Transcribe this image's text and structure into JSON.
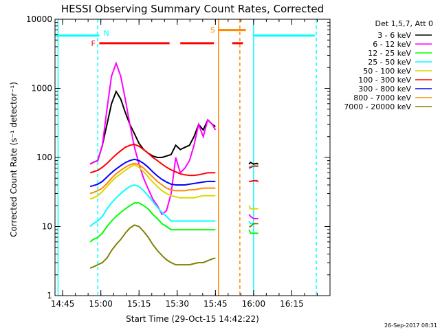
{
  "chart_data": {
    "type": "line",
    "title": "HESSI Observing Summary Count Rates, Corrected",
    "xlabel": "Start Time (29-Oct-15 14:42:22)",
    "ylabel": "Corrected Count Rate (s⁻¹ detector⁻¹)",
    "timestamp": "26-Sep-2017 08:31",
    "y_scale": "log",
    "ylim": [
      1,
      10000
    ],
    "y_ticks": [
      1,
      10,
      100,
      1000,
      10000
    ],
    "y_tick_labels": [
      "1",
      "10",
      "100",
      "1000",
      "10000"
    ],
    "xlim_min": [
      14.7,
      16.5
    ],
    "x_tick_labels": [
      "14:45",
      "15:00",
      "15:15",
      "15:30",
      "15:45",
      "16:00",
      "16:15"
    ],
    "legend_header": "Det 1,5,7, Att 0",
    "legend_position": "right",
    "grid": false,
    "series": [
      {
        "name": "3 - 6 keV",
        "color": "#000000",
        "x": [
          14.93,
          14.95,
          14.98,
          15.01,
          15.04,
          15.07,
          15.1,
          15.13,
          15.16,
          15.19,
          15.22,
          15.25,
          15.28,
          15.31,
          15.34,
          15.37,
          15.4,
          15.43,
          15.46,
          15.49,
          15.52,
          15.55,
          15.58,
          15.61,
          15.64,
          15.67,
          15.7,
          15.73,
          15.75
        ],
        "y": [
          80,
          85,
          90,
          150,
          300,
          600,
          900,
          700,
          450,
          300,
          220,
          160,
          130,
          115,
          105,
          100,
          100,
          105,
          110,
          150,
          130,
          140,
          150,
          200,
          300,
          250,
          350,
          300,
          280
        ]
      },
      {
        "name": "6 - 12 keV",
        "color": "#ff00ff",
        "x": [
          14.93,
          14.95,
          14.98,
          15.01,
          15.04,
          15.07,
          15.1,
          15.13,
          15.16,
          15.19,
          15.22,
          15.25,
          15.28,
          15.31,
          15.34,
          15.37,
          15.4,
          15.43,
          15.46,
          15.49,
          15.52,
          15.55,
          15.58,
          15.61,
          15.64,
          15.67,
          15.7,
          15.73,
          15.75
        ],
        "y": [
          80,
          85,
          90,
          150,
          500,
          1500,
          2300,
          1500,
          700,
          300,
          140,
          80,
          50,
          35,
          25,
          20,
          15,
          17,
          30,
          100,
          60,
          70,
          90,
          150,
          300,
          200,
          350,
          300,
          250
        ]
      },
      {
        "name": "12 - 25 keV",
        "color": "#00ff00",
        "x": [
          14.93,
          14.95,
          14.98,
          15.01,
          15.04,
          15.07,
          15.1,
          15.13,
          15.16,
          15.19,
          15.22,
          15.25,
          15.28,
          15.31,
          15.34,
          15.37,
          15.4,
          15.43,
          15.46,
          15.49,
          15.52,
          15.55,
          15.58,
          15.61,
          15.64,
          15.67,
          15.7,
          15.73,
          15.75
        ],
        "y": [
          6,
          6.5,
          7,
          8,
          10,
          12,
          14,
          16,
          18,
          20,
          22,
          22,
          20,
          18,
          15,
          13,
          11,
          10,
          9,
          9,
          9,
          9,
          9,
          9,
          9,
          9,
          9,
          9,
          9
        ]
      },
      {
        "name": "25 - 50 keV",
        "color": "#00ffff",
        "x": [
          14.93,
          14.95,
          14.98,
          15.01,
          15.04,
          15.07,
          15.1,
          15.13,
          15.16,
          15.19,
          15.22,
          15.25,
          15.28,
          15.31,
          15.34,
          15.37,
          15.4,
          15.43,
          15.46,
          15.49,
          15.52,
          15.55,
          15.58,
          15.61,
          15.64,
          15.67,
          15.7,
          15.73,
          15.75
        ],
        "y": [
          10,
          11,
          12,
          14,
          18,
          22,
          26,
          30,
          34,
          38,
          40,
          38,
          33,
          28,
          23,
          19,
          16,
          14,
          12,
          12,
          12,
          12,
          12,
          12,
          12,
          12,
          12,
          12,
          12
        ]
      },
      {
        "name": "50 - 100 keV",
        "color": "#d8d800",
        "x": [
          14.93,
          14.95,
          14.98,
          15.01,
          15.04,
          15.07,
          15.1,
          15.13,
          15.16,
          15.19,
          15.22,
          15.25,
          15.28,
          15.31,
          15.34,
          15.37,
          15.4,
          15.43,
          15.46,
          15.49,
          15.52,
          15.55,
          15.58,
          15.61,
          15.64,
          15.67,
          15.7,
          15.73,
          15.75
        ],
        "y": [
          25,
          26,
          28,
          32,
          38,
          45,
          52,
          58,
          65,
          72,
          78,
          72,
          62,
          52,
          44,
          38,
          33,
          30,
          28,
          27,
          26,
          26,
          26,
          26,
          27,
          28,
          28,
          28,
          28
        ]
      },
      {
        "name": "100 - 300 keV",
        "color": "#ff0000",
        "x": [
          14.93,
          14.95,
          14.98,
          15.01,
          15.04,
          15.07,
          15.1,
          15.13,
          15.16,
          15.19,
          15.22,
          15.25,
          15.28,
          15.31,
          15.34,
          15.37,
          15.4,
          15.43,
          15.46,
          15.49,
          15.52,
          15.55,
          15.58,
          15.61,
          15.64,
          15.67,
          15.7,
          15.73,
          15.75
        ],
        "y": [
          60,
          62,
          65,
          72,
          82,
          95,
          110,
          125,
          140,
          150,
          155,
          145,
          130,
          115,
          100,
          90,
          80,
          72,
          66,
          62,
          58,
          56,
          55,
          55,
          56,
          58,
          60,
          60,
          60
        ]
      },
      {
        "name": "300 - 800 keV",
        "color": "#0000ff",
        "x": [
          14.93,
          14.95,
          14.98,
          15.01,
          15.04,
          15.07,
          15.1,
          15.13,
          15.16,
          15.19,
          15.22,
          15.25,
          15.28,
          15.31,
          15.34,
          15.37,
          15.4,
          15.43,
          15.46,
          15.49,
          15.52,
          15.55,
          15.58,
          15.61,
          15.64,
          15.67,
          15.7,
          15.73,
          15.75
        ],
        "y": [
          38,
          39,
          41,
          45,
          52,
          60,
          68,
          76,
          84,
          90,
          94,
          90,
          82,
          72,
          62,
          54,
          48,
          44,
          41,
          40,
          40,
          40,
          41,
          42,
          43,
          44,
          45,
          45,
          45
        ]
      },
      {
        "name": "800 - 7000 keV",
        "color": "#ff8800",
        "x": [
          14.93,
          14.95,
          14.98,
          15.01,
          15.04,
          15.07,
          15.1,
          15.13,
          15.16,
          15.19,
          15.22,
          15.25,
          15.28,
          15.31,
          15.34,
          15.37,
          15.4,
          15.43,
          15.46,
          15.49,
          15.52,
          15.55,
          15.58,
          15.61,
          15.64,
          15.67,
          15.7,
          15.73,
          15.75
        ],
        "y": [
          30,
          31,
          33,
          36,
          42,
          50,
          58,
          65,
          72,
          78,
          82,
          78,
          70,
          60,
          52,
          45,
          40,
          36,
          34,
          33,
          33,
          33,
          34,
          34,
          35,
          36,
          36,
          36,
          36
        ]
      },
      {
        "name": "7000 - 20000 keV",
        "color": "#808000",
        "x": [
          14.93,
          14.95,
          14.98,
          15.01,
          15.04,
          15.07,
          15.1,
          15.13,
          15.16,
          15.19,
          15.22,
          15.25,
          15.28,
          15.31,
          15.34,
          15.37,
          15.4,
          15.43,
          15.46,
          15.49,
          15.52,
          15.55,
          15.58,
          15.61,
          15.64,
          15.67,
          15.7,
          15.73,
          15.75
        ],
        "y": [
          2.5,
          2.6,
          2.8,
          3,
          3.5,
          4.5,
          5.5,
          6.5,
          8,
          9.5,
          10.5,
          10,
          8.5,
          7,
          5.5,
          4.5,
          3.8,
          3.3,
          3,
          2.8,
          2.8,
          2.8,
          2.8,
          2.9,
          3,
          3,
          3.2,
          3.4,
          3.5
        ]
      }
    ],
    "late_segments": {
      "x": [
        15.97,
        15.98,
        16.0,
        16.02,
        16.03
      ],
      "values": {
        "3 - 6 keV": [
          80,
          85,
          80,
          82,
          80
        ],
        "6 - 12 keV": [
          15,
          14,
          13,
          13,
          13
        ],
        "12 - 25 keV": [
          9,
          8,
          8,
          8,
          8
        ],
        "25 - 50 keV": [
          12,
          11,
          11,
          11,
          11
        ],
        "50 - 100 keV": [
          20,
          18,
          18,
          18,
          18
        ],
        "100 - 300 keV": [
          45,
          45,
          46,
          46,
          45
        ],
        "300 - 800 keV": [
          70,
          72,
          75,
          75,
          74
        ],
        "800 - 7000 keV": [
          72,
          74,
          76,
          76,
          75
        ],
        "7000 - 20000 keV": [
          10,
          10,
          11,
          11,
          11
        ]
      }
    },
    "flags": {
      "F": {
        "label": "F",
        "color": "#ff0000",
        "y": 4500,
        "segments": [
          [
            14.99,
            15.45
          ],
          [
            15.52,
            15.74
          ],
          [
            15.86,
            15.93
          ]
        ]
      },
      "N": {
        "label": "N",
        "color": "#00ffff",
        "y": 5800,
        "segments": [
          [
            14.7,
            14.99
          ],
          [
            16.0,
            16.4
          ]
        ]
      },
      "S": {
        "label": "S",
        "color": "#ff8800",
        "y": 7000,
        "segments": [
          [
            15.77,
            15.95
          ]
        ]
      }
    },
    "vertical_lines": [
      {
        "x": 14.72,
        "color": "#00ffff",
        "style": "solid"
      },
      {
        "x": 14.98,
        "color": "#00ffff",
        "style": "dashed"
      },
      {
        "x": 15.77,
        "color": "#ff8800",
        "style": "solid"
      },
      {
        "x": 15.91,
        "color": "#ff8800",
        "style": "dashed"
      },
      {
        "x": 16.0,
        "color": "#00ffff",
        "style": "solid"
      },
      {
        "x": 16.41,
        "color": "#00ffff",
        "style": "dashed"
      }
    ]
  }
}
